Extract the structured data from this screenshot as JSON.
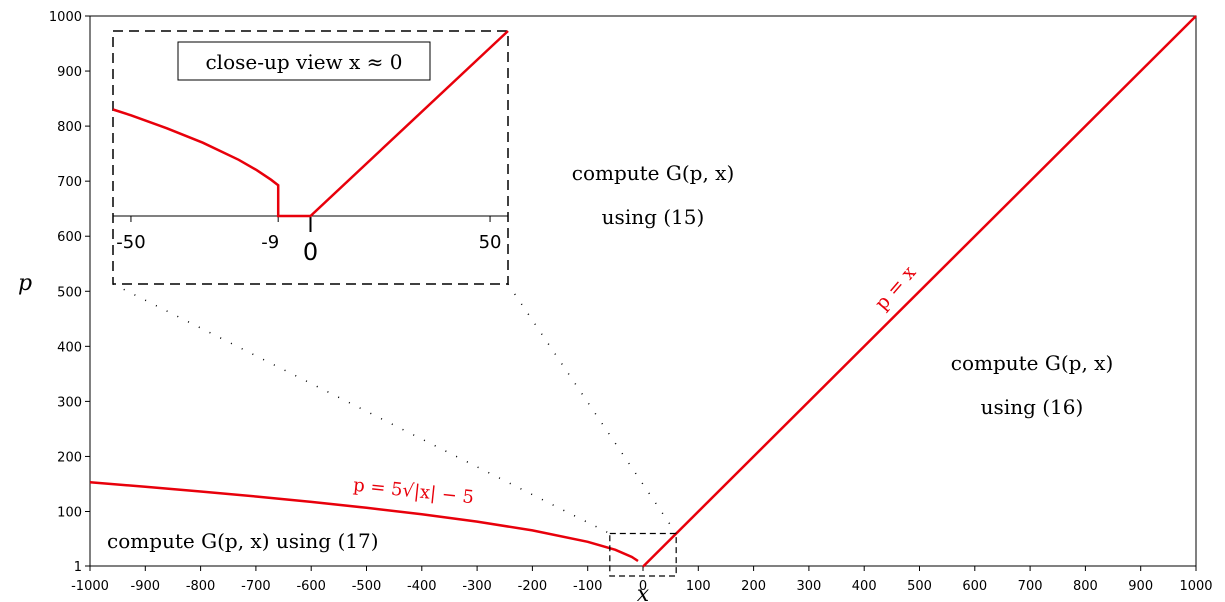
{
  "chart_data": {
    "type": "line",
    "xlabel": "x",
    "ylabel": "p",
    "xlim": [
      -1000,
      1000
    ],
    "ylim": [
      1,
      1000
    ],
    "x_ticks": [
      "-1000",
      "-900",
      "-800",
      "-700",
      "-600",
      "-500",
      "-400",
      "-300",
      "-200",
      "-100",
      "0",
      "100",
      "200",
      "300",
      "400",
      "500",
      "600",
      "700",
      "800",
      "900",
      "1000"
    ],
    "y_ticks": [
      "1",
      "100",
      "200",
      "300",
      "400",
      "500",
      "600",
      "700",
      "800",
      "900",
      "1000"
    ],
    "series": [
      {
        "curve_label": "p = x",
        "x": [
          0,
          1000
        ],
        "y": [
          0,
          1000
        ]
      },
      {
        "curve_label": "p = 5√|x| − 5",
        "x": [
          -1000,
          -900,
          -800,
          -700,
          -600,
          -500,
          -400,
          -300,
          -200,
          -100,
          -50,
          -20,
          -9
        ],
        "y": [
          153.1,
          145.0,
          136.4,
          127.3,
          117.5,
          106.8,
          95.0,
          81.6,
          65.7,
          45.0,
          30.4,
          17.4,
          10.0
        ]
      }
    ],
    "region_labels": [
      {
        "line1": "compute G(p, x)",
        "line2": "using (15)"
      },
      {
        "line1": "compute G(p, x)",
        "line2": "using (16)"
      },
      {
        "line1": "compute G(p, x) using (17)"
      }
    ],
    "grid": false,
    "inset": {
      "title": "close-up view x ≈ 0",
      "x_ticks": [
        "-50",
        "-9",
        "0",
        "50"
      ],
      "xlim": [
        -55,
        55
      ],
      "x_range_main": [
        -60,
        60
      ],
      "y_range_main": [
        1,
        60
      ],
      "curve_x": [
        -55,
        -50,
        -40,
        -30,
        -20,
        -15,
        -11,
        -9,
        -9,
        0,
        55
      ],
      "curve_y": [
        32.1,
        30.4,
        26.6,
        22.4,
        17.4,
        14.4,
        11.6,
        10.0,
        1,
        1,
        55
      ]
    }
  }
}
